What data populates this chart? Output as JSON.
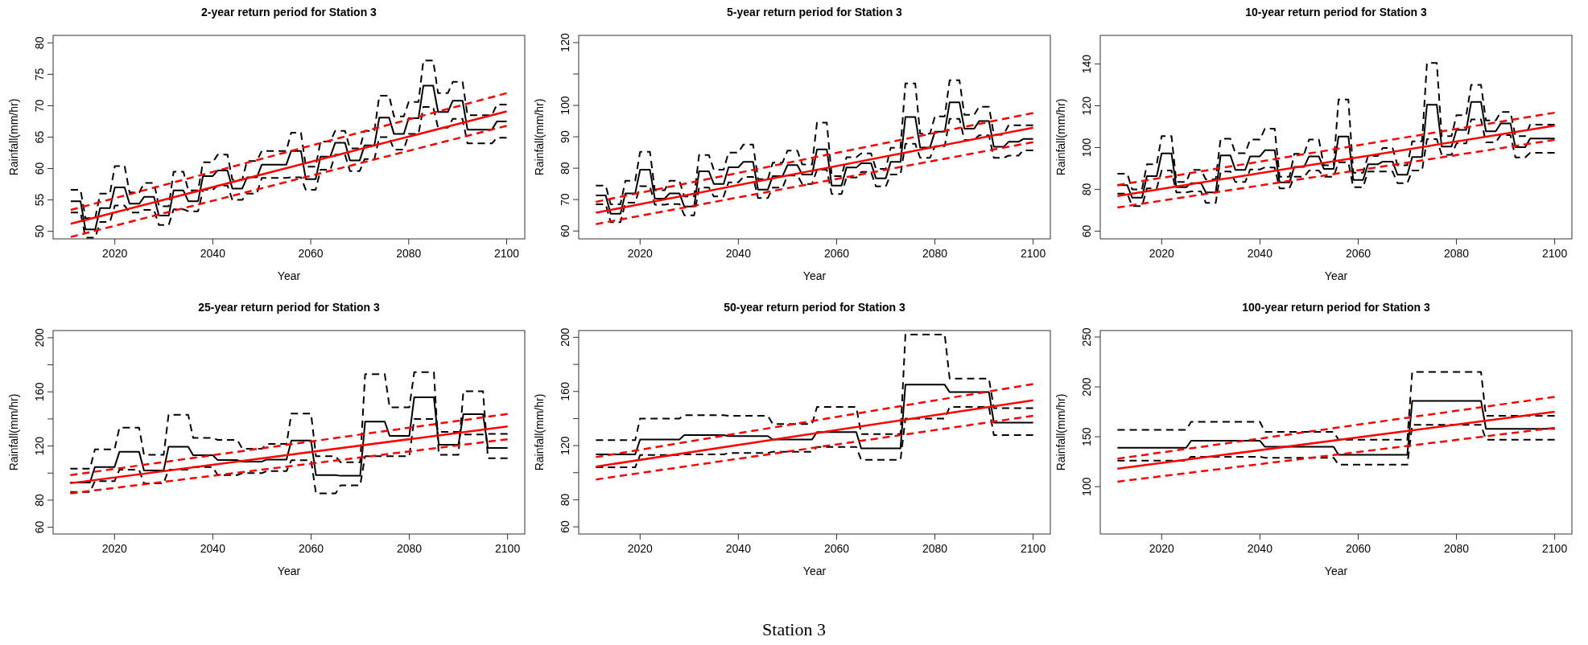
{
  "chart_data": [
    {
      "type": "line",
      "title": "2-year return period for Station 3",
      "xlabel": "Year",
      "ylabel": "Rainfall(mm/hr)",
      "xlim": [
        2007.4,
        2103.7
      ],
      "ylim": [
        48.8,
        81.2
      ],
      "xticks": [
        2020,
        2040,
        2060,
        2080,
        2100
      ],
      "yticks": [
        50,
        55,
        60,
        65,
        70,
        75,
        80
      ],
      "series": [
        {
          "color": "#000000",
          "line_style": "solid",
          "x": [
            2011,
            2013,
            2014,
            2016,
            2017,
            2019,
            2020,
            2022,
            2023,
            2025,
            2026,
            2028,
            2029,
            2031,
            2032,
            2034,
            2035,
            2037,
            2038,
            2040,
            2041,
            2043,
            2044,
            2046,
            2047,
            2049,
            2050,
            2055,
            2056,
            2058,
            2059,
            2061,
            2062,
            2064,
            2065,
            2067,
            2068,
            2070,
            2071,
            2073,
            2074,
            2076,
            2077,
            2079,
            2080,
            2082,
            2083,
            2085,
            2086,
            2088,
            2089,
            2091,
            2092,
            2097,
            2098,
            2100
          ],
          "values": [
            54.8,
            54.8,
            50.3,
            50.3,
            53.7,
            53.7,
            57,
            57,
            54.4,
            54.4,
            55.5,
            55.5,
            52.5,
            52.5,
            56.5,
            56.5,
            54.8,
            54.8,
            58.8,
            58.8,
            59.7,
            59.7,
            56.8,
            56.8,
            58.6,
            58.6,
            60.6,
            60.6,
            62.8,
            62.8,
            58.3,
            58.3,
            61.9,
            61.9,
            64.1,
            64.1,
            61.3,
            61.3,
            63.7,
            63.7,
            68.1,
            68.1,
            65.5,
            65.5,
            68,
            68,
            73.2,
            73.2,
            69,
            69,
            70.8,
            70.8,
            66.2,
            66.2,
            67.5,
            67.5
          ]
        },
        {
          "color": "#000000",
          "line_style": "dashed",
          "x": [
            2011,
            2013,
            2014,
            2016,
            2017,
            2019,
            2020,
            2022,
            2023,
            2025,
            2026,
            2028,
            2029,
            2031,
            2032,
            2034,
            2035,
            2037,
            2038,
            2040,
            2041,
            2043,
            2044,
            2046,
            2047,
            2049,
            2050,
            2055,
            2056,
            2058,
            2059,
            2061,
            2062,
            2064,
            2065,
            2067,
            2068,
            2070,
            2071,
            2073,
            2074,
            2076,
            2077,
            2079,
            2080,
            2082,
            2083,
            2085,
            2086,
            2088,
            2089,
            2091,
            2092,
            2097,
            2098,
            2100
          ],
          "values": [
            56.6,
            56.6,
            52.1,
            52.1,
            56,
            56,
            60.4,
            60.4,
            56.2,
            56.2,
            57.7,
            57.7,
            54,
            54,
            59.5,
            59.5,
            56.5,
            56.5,
            61,
            61,
            62.2,
            62.2,
            58.2,
            58.2,
            61.2,
            61.2,
            62.8,
            62.8,
            65.7,
            65.7,
            60.3,
            60.3,
            64.3,
            64.3,
            66,
            66,
            63.2,
            63.2,
            66,
            66,
            71.6,
            71.6,
            68.3,
            68.3,
            70.6,
            70.6,
            77.2,
            77.2,
            72,
            72,
            73.8,
            73.8,
            68.5,
            68.5,
            70.2,
            70.2
          ]
        },
        {
          "color": "#000000",
          "line_style": "dashed",
          "x": [
            2011,
            2013,
            2014,
            2016,
            2017,
            2019,
            2020,
            2022,
            2023,
            2025,
            2026,
            2028,
            2029,
            2031,
            2032,
            2034,
            2035,
            2037,
            2038,
            2040,
            2041,
            2043,
            2044,
            2046,
            2047,
            2049,
            2050,
            2055,
            2056,
            2058,
            2059,
            2061,
            2062,
            2064,
            2065,
            2067,
            2068,
            2070,
            2071,
            2073,
            2074,
            2076,
            2077,
            2079,
            2080,
            2082,
            2083,
            2085,
            2086,
            2088,
            2089,
            2091,
            2092,
            2097,
            2098,
            2100
          ],
          "values": [
            53,
            53,
            49,
            49,
            51.5,
            51.5,
            54.1,
            54.1,
            53,
            53,
            53.4,
            53.4,
            51,
            51,
            53.5,
            53.5,
            53.2,
            53.2,
            56.6,
            56.6,
            57.3,
            57.3,
            55,
            55,
            56,
            56,
            58.5,
            58.5,
            58.6,
            58.6,
            56.6,
            56.6,
            59.8,
            59.8,
            62.2,
            62.2,
            59.6,
            59.6,
            61.5,
            61.5,
            65,
            65,
            63,
            63,
            65.5,
            65.5,
            69.8,
            69.8,
            66.5,
            66.5,
            67.9,
            67.9,
            64,
            64,
            64.9,
            64.9
          ]
        },
        {
          "color": "#ff0000",
          "line_style": "solid",
          "x": [
            2011,
            2100
          ],
          "values": [
            51.2,
            69.1
          ]
        },
        {
          "color": "#ff0000",
          "line_style": "dashed",
          "x": [
            2011,
            2100
          ],
          "values": [
            53.4,
            72
          ]
        },
        {
          "color": "#ff0000",
          "line_style": "dashed",
          "x": [
            2011,
            2100
          ],
          "values": [
            49.1,
            66.8
          ]
        }
      ]
    },
    {
      "type": "line",
      "title": "5-year return period for Station 3",
      "xlabel": "Year",
      "ylabel": "Rainfall(mm/hr)",
      "xlim": [
        2007.5,
        2103.5
      ],
      "ylim": [
        57.5,
        122.3
      ],
      "xticks": [
        2020,
        2040,
        2060,
        2080,
        2100
      ],
      "yticks": [
        60,
        70,
        80,
        90,
        100,
        {
          "value": 110,
          "label": null
        },
        120
      ],
      "series": [
        {
          "color": "#000000",
          "line_style": "solid",
          "x": [
            2011,
            2013,
            2014,
            2016,
            2017,
            2019,
            2020,
            2022,
            2023,
            2025,
            2026,
            2028,
            2029,
            2031,
            2032,
            2034,
            2035,
            2037,
            2038,
            2040,
            2041,
            2043,
            2044,
            2046,
            2047,
            2049,
            2050,
            2052,
            2053,
            2055,
            2056,
            2058,
            2059,
            2061,
            2062,
            2064,
            2065,
            2067,
            2068,
            2070,
            2071,
            2073,
            2074,
            2076,
            2077,
            2079,
            2080,
            2082,
            2083,
            2085,
            2086,
            2088,
            2089,
            2091,
            2092,
            2094,
            2095,
            2097,
            2098,
            2100
          ],
          "values": [
            71.3,
            71.3,
            65.5,
            65.5,
            72,
            72,
            79.5,
            79.5,
            70.3,
            70.3,
            72,
            72,
            67.8,
            67.8,
            79,
            79,
            75,
            75,
            80.3,
            80.3,
            82,
            82,
            73.2,
            73.2,
            77.5,
            77.5,
            81,
            81,
            78,
            78,
            86,
            86,
            74.5,
            74.5,
            80.2,
            80.2,
            81.6,
            81.6,
            76.8,
            76.8,
            82,
            82,
            96.3,
            96.3,
            86.6,
            86.6,
            91.6,
            91.6,
            101,
            101,
            92.6,
            92.6,
            95,
            95,
            86.8,
            86.8,
            88.4,
            88.4,
            89.3,
            89.3
          ]
        },
        {
          "color": "#000000",
          "line_style": "dashed",
          "x": [
            2011,
            2013,
            2014,
            2016,
            2017,
            2019,
            2020,
            2022,
            2023,
            2025,
            2026,
            2028,
            2029,
            2031,
            2032,
            2034,
            2035,
            2037,
            2038,
            2040,
            2041,
            2043,
            2044,
            2046,
            2047,
            2049,
            2050,
            2052,
            2053,
            2055,
            2056,
            2058,
            2059,
            2061,
            2062,
            2064,
            2065,
            2067,
            2068,
            2070,
            2071,
            2073,
            2074,
            2076,
            2077,
            2079,
            2080,
            2082,
            2083,
            2085,
            2086,
            2088,
            2089,
            2091,
            2092,
            2094,
            2095,
            2097,
            2098,
            2100
          ],
          "values": [
            74.5,
            74.5,
            68.5,
            68.5,
            76,
            76,
            85.2,
            85.2,
            73,
            73,
            76,
            76,
            71,
            71,
            84.2,
            84.2,
            79.5,
            79.5,
            85,
            85,
            87.5,
            87.5,
            76.5,
            76.5,
            81.8,
            81.8,
            85.6,
            85.6,
            81.2,
            81.2,
            94.5,
            94.5,
            77.5,
            77.5,
            83.5,
            83.5,
            84.7,
            84.7,
            79.8,
            79.8,
            86.5,
            86.5,
            107,
            107,
            91,
            91,
            96.5,
            96.5,
            108,
            108,
            97,
            97,
            99.6,
            99.6,
            90.7,
            90.7,
            93.7,
            93.7,
            93.7,
            93.7
          ]
        },
        {
          "color": "#000000",
          "line_style": "dashed",
          "x": [
            2011,
            2013,
            2014,
            2016,
            2017,
            2019,
            2020,
            2022,
            2023,
            2025,
            2026,
            2028,
            2029,
            2031,
            2032,
            2034,
            2035,
            2037,
            2038,
            2040,
            2041,
            2043,
            2044,
            2046,
            2047,
            2049,
            2050,
            2052,
            2053,
            2055,
            2056,
            2058,
            2059,
            2061,
            2062,
            2064,
            2065,
            2067,
            2068,
            2070,
            2071,
            2073,
            2074,
            2076,
            2077,
            2079,
            2080,
            2082,
            2083,
            2085,
            2086,
            2088,
            2089,
            2091,
            2092,
            2094,
            2095,
            2097,
            2098,
            2100
          ],
          "values": [
            68.5,
            68.5,
            62.8,
            62.8,
            69,
            69,
            74.3,
            74.3,
            68.4,
            68.4,
            68.6,
            68.6,
            65,
            65,
            73.8,
            73.8,
            71,
            71,
            75.5,
            75.5,
            77.2,
            77.2,
            70.5,
            70.5,
            73.8,
            73.8,
            77.7,
            77.7,
            75,
            75,
            79.5,
            79.5,
            71.8,
            71.8,
            77,
            77,
            78.8,
            78.8,
            74.2,
            74.2,
            78,
            78,
            87.8,
            87.8,
            83.3,
            83.3,
            87,
            87,
            95.7,
            95.7,
            89,
            89,
            90.5,
            90.5,
            83.3,
            83.3,
            84,
            84,
            85.7,
            85.7
          ]
        },
        {
          "color": "#ff0000",
          "line_style": "solid",
          "x": [
            2011,
            2100
          ],
          "values": [
            65.8,
            92.9
          ]
        },
        {
          "color": "#ff0000",
          "line_style": "dashed",
          "x": [
            2011,
            2100
          ],
          "values": [
            69.3,
            97.6
          ]
        },
        {
          "color": "#ff0000",
          "line_style": "dashed",
          "x": [
            2011,
            2100
          ],
          "values": [
            62.2,
            88.3
          ]
        }
      ]
    },
    {
      "type": "line",
      "title": "10-year return period for Station 3",
      "xlabel": "Year",
      "ylabel": "Rainfall(mm/hr)",
      "xlim": [
        2007.5,
        2103.5
      ],
      "ylim": [
        56.3,
        153.7
      ],
      "xticks": [
        2020,
        2040,
        2060,
        2080,
        2100
      ],
      "yticks": [
        60,
        80,
        100,
        120,
        140
      ],
      "series": [
        {
          "color": "#000000",
          "line_style": "solid",
          "x": [
            2011,
            2013,
            2014,
            2016,
            2017,
            2019,
            2020,
            2022,
            2023,
            2025,
            2026,
            2028,
            2029,
            2031,
            2032,
            2034,
            2035,
            2037,
            2038,
            2040,
            2041,
            2043,
            2044,
            2046,
            2047,
            2049,
            2050,
            2052,
            2053,
            2055,
            2056,
            2058,
            2059,
            2061,
            2062,
            2064,
            2065,
            2067,
            2068,
            2070,
            2071,
            2073,
            2074,
            2076,
            2077,
            2079,
            2080,
            2082,
            2083,
            2085,
            2086,
            2088,
            2089,
            2091,
            2092,
            2094,
            2095,
            2100
          ],
          "values": [
            82,
            82,
            76,
            76,
            86.3,
            86.3,
            97.2,
            97.2,
            81,
            81,
            83,
            83,
            78.5,
            78.5,
            96.2,
            96.2,
            89.3,
            89.3,
            95.8,
            95.8,
            98.7,
            98.7,
            83.3,
            83.3,
            90.8,
            90.8,
            95.8,
            95.8,
            89.8,
            89.8,
            105.3,
            105.3,
            84.5,
            84.5,
            92,
            92,
            93.3,
            93.3,
            87,
            87,
            95.5,
            95.5,
            120.5,
            120.5,
            100.5,
            100.5,
            108.5,
            108.5,
            121.8,
            121.8,
            107.8,
            107.8,
            111.5,
            111.5,
            100.2,
            100.2,
            104.3,
            104.3
          ]
        },
        {
          "color": "#000000",
          "line_style": "dashed",
          "x": [
            2011,
            2013,
            2014,
            2016,
            2017,
            2019,
            2020,
            2022,
            2023,
            2025,
            2026,
            2028,
            2029,
            2031,
            2032,
            2034,
            2035,
            2037,
            2038,
            2040,
            2041,
            2043,
            2044,
            2046,
            2047,
            2049,
            2050,
            2052,
            2053,
            2055,
            2056,
            2058,
            2059,
            2061,
            2062,
            2064,
            2065,
            2067,
            2068,
            2070,
            2071,
            2073,
            2074,
            2076,
            2077,
            2079,
            2080,
            2082,
            2083,
            2085,
            2086,
            2088,
            2089,
            2091,
            2092,
            2094,
            2095,
            2100
          ],
          "values": [
            87.5,
            87.5,
            80,
            80,
            92,
            92,
            105.5,
            105.5,
            83.5,
            83.5,
            89.3,
            89.3,
            84.8,
            84.8,
            104.2,
            104.2,
            97.3,
            97.3,
            103.8,
            103.8,
            109,
            109,
            86,
            86,
            97,
            97,
            103.8,
            103.8,
            91.5,
            91.5,
            123,
            123,
            88,
            88,
            96,
            96,
            99.8,
            99.8,
            91.5,
            91.5,
            103,
            103,
            140.5,
            140.5,
            105.5,
            105.5,
            115.5,
            115.5,
            130,
            130,
            113,
            113,
            117,
            117,
            105.5,
            105.5,
            111,
            111
          ]
        },
        {
          "color": "#000000",
          "line_style": "dashed",
          "x": [
            2011,
            2013,
            2014,
            2016,
            2017,
            2019,
            2020,
            2022,
            2023,
            2025,
            2026,
            2028,
            2029,
            2031,
            2032,
            2034,
            2035,
            2037,
            2038,
            2040,
            2041,
            2043,
            2044,
            2046,
            2047,
            2049,
            2050,
            2052,
            2053,
            2055,
            2056,
            2058,
            2059,
            2061,
            2062,
            2064,
            2065,
            2067,
            2068,
            2070,
            2071,
            2073,
            2074,
            2076,
            2077,
            2079,
            2080,
            2082,
            2083,
            2085,
            2086,
            2088,
            2089,
            2091,
            2092,
            2094,
            2095,
            2100
          ],
          "values": [
            78,
            78,
            72,
            72,
            80.5,
            80.5,
            89,
            89,
            78.5,
            78.5,
            79,
            79,
            73.5,
            73.5,
            88.5,
            88.5,
            83.5,
            83.5,
            89.5,
            89.5,
            90.5,
            90.5,
            80.5,
            80.5,
            86,
            86,
            89,
            89,
            86,
            86,
            93,
            93,
            81,
            81,
            88.5,
            88.5,
            88.5,
            88.5,
            83,
            83,
            89,
            89,
            104,
            104,
            96.5,
            96.5,
            102,
            102,
            113.5,
            113.5,
            102.5,
            102.5,
            106,
            106,
            95.3,
            95.3,
            97.5,
            97.5
          ]
        },
        {
          "color": "#ff0000",
          "line_style": "solid",
          "x": [
            2011,
            2100
          ],
          "values": [
            76.8,
            110.5
          ]
        },
        {
          "color": "#ff0000",
          "line_style": "dashed",
          "x": [
            2011,
            2100
          ],
          "values": [
            82,
            116.7
          ]
        },
        {
          "color": "#ff0000",
          "line_style": "dashed",
          "x": [
            2011,
            2100
          ],
          "values": [
            71.3,
            103.7
          ]
        }
      ]
    },
    {
      "type": "line",
      "title": "25-year return period for Station 3",
      "xlabel": "Year",
      "ylabel": "Rainfall(mm/hr)",
      "xlim": [
        2007.5,
        2103.5
      ],
      "ylim": [
        55,
        205.3
      ],
      "xticks": [
        2020,
        2040,
        2060,
        2080,
        2100
      ],
      "yticks": [
        60,
        80,
        {
          "value": 100,
          "label": null
        },
        120,
        {
          "value": 140,
          "label": null
        },
        160,
        {
          "value": 180,
          "label": null
        },
        200
      ],
      "series": [
        {
          "color": "#000000",
          "line_style": "solid",
          "x": [
            2011,
            2015,
            2016,
            2020,
            2021,
            2025,
            2026,
            2030,
            2031,
            2035,
            2036,
            2040,
            2041,
            2045,
            2046,
            2050,
            2051,
            2055,
            2056,
            2060,
            2061,
            2065,
            2066,
            2070,
            2071,
            2075,
            2076,
            2080,
            2081,
            2085,
            2086,
            2090,
            2091,
            2095,
            2096,
            2100
          ],
          "values": [
            93,
            93,
            104.5,
            104.5,
            115.7,
            115.7,
            102,
            102,
            119.5,
            119.5,
            113.2,
            113.2,
            109.6,
            109.6,
            108.5,
            108.5,
            110,
            110,
            124,
            124,
            98.5,
            98.5,
            98,
            98,
            138,
            138,
            127.5,
            127.5,
            156,
            156,
            121,
            121,
            143.5,
            143.5,
            118.5,
            118.5
          ]
        },
        {
          "color": "#000000",
          "line_style": "dashed",
          "x": [
            2011,
            2015,
            2016,
            2020,
            2021,
            2025,
            2026,
            2030,
            2031,
            2035,
            2036,
            2040,
            2041,
            2045,
            2046,
            2050,
            2051,
            2055,
            2056,
            2060,
            2061,
            2065,
            2066,
            2070,
            2071,
            2075,
            2076,
            2080,
            2081,
            2085,
            2086,
            2090,
            2091,
            2095,
            2096,
            2100
          ],
          "values": [
            103.3,
            103.3,
            117.5,
            117.5,
            133.5,
            133.5,
            113.5,
            113.5,
            143,
            143,
            126,
            126,
            124.5,
            124.5,
            118,
            118,
            121.5,
            121.5,
            144,
            144,
            112.5,
            112.5,
            108,
            108,
            173,
            173,
            148.5,
            148.5,
            174.5,
            174.5,
            113.5,
            113.5,
            160.5,
            160.5,
            111,
            111
          ]
        },
        {
          "color": "#000000",
          "line_style": "dashed",
          "x": [
            2011,
            2015,
            2016,
            2020,
            2021,
            2025,
            2026,
            2030,
            2031,
            2035,
            2036,
            2040,
            2041,
            2045,
            2046,
            2050,
            2051,
            2055,
            2056,
            2060,
            2061,
            2065,
            2066,
            2070,
            2071,
            2075,
            2076,
            2080,
            2081,
            2085,
            2086,
            2090,
            2091,
            2095,
            2096,
            2100
          ],
          "values": [
            86,
            86,
            94,
            94,
            102.5,
            102.5,
            92.5,
            92.5,
            102.5,
            102.5,
            104.5,
            104.5,
            98.5,
            98.5,
            100,
            100,
            101.5,
            101.5,
            109.5,
            109.5,
            85,
            85,
            91,
            91,
            112.5,
            112.5,
            112.5,
            112.5,
            140,
            140,
            130.5,
            130.5,
            128.5,
            128.5,
            129,
            129
          ]
        },
        {
          "color": "#ff0000",
          "line_style": "solid",
          "x": [
            2011,
            2100
          ],
          "values": [
            92.5,
            134.5
          ]
        },
        {
          "color": "#ff0000",
          "line_style": "dashed",
          "x": [
            2011,
            2100
          ],
          "values": [
            98.5,
            143.7
          ]
        },
        {
          "color": "#ff0000",
          "line_style": "dashed",
          "x": [
            2011,
            2100
          ],
          "values": [
            85,
            125
          ]
        }
      ]
    },
    {
      "type": "line",
      "title": "50-year return period for Station 3",
      "xlabel": "Year",
      "ylabel": "Rainfall(mm/hr)",
      "xlim": [
        2007.5,
        2103.5
      ],
      "ylim": [
        54.7,
        205
      ],
      "xticks": [
        2020,
        2040,
        2060,
        2080,
        2100
      ],
      "yticks": [
        60,
        80,
        {
          "value": 100,
          "label": null
        },
        120,
        {
          "value": 140,
          "label": null
        },
        160,
        {
          "value": 180,
          "label": null
        },
        200
      ],
      "series": [
        {
          "color": "#000000",
          "line_style": "solid",
          "x": [
            2011,
            2019,
            2020,
            2028,
            2029,
            2037,
            2038,
            2046,
            2047,
            2055,
            2056,
            2064,
            2065,
            2073,
            2074,
            2082,
            2083,
            2091,
            2092,
            2100
          ],
          "values": [
            113.5,
            113.5,
            124.5,
            124.5,
            127.8,
            127.8,
            127,
            127,
            124.5,
            124.5,
            130,
            130,
            118,
            118,
            165,
            165,
            159.5,
            159.5,
            137,
            137
          ]
        },
        {
          "color": "#000000",
          "line_style": "dashed",
          "x": [
            2011,
            2019,
            2020,
            2028,
            2029,
            2037,
            2038,
            2046,
            2047,
            2055,
            2056,
            2064,
            2065,
            2073,
            2074,
            2082,
            2083,
            2091,
            2092,
            2100
          ],
          "values": [
            124,
            124,
            140,
            140,
            142.5,
            142.5,
            142,
            142,
            136,
            136,
            148.5,
            148.5,
            128.5,
            128.5,
            202,
            202,
            169.5,
            169.5,
            147.7,
            147.7
          ]
        },
        {
          "color": "#000000",
          "line_style": "dashed",
          "x": [
            2011,
            2019,
            2020,
            2028,
            2029,
            2037,
            2038,
            2046,
            2047,
            2055,
            2056,
            2064,
            2065,
            2073,
            2074,
            2082,
            2083,
            2091,
            2092,
            2100
          ],
          "values": [
            104,
            104,
            113,
            113,
            113.5,
            113.5,
            114.5,
            114.5,
            115.5,
            115.5,
            119,
            119,
            109.5,
            109.5,
            140,
            140,
            148.5,
            148.5,
            127.7,
            127.7
          ]
        },
        {
          "color": "#ff0000",
          "line_style": "solid",
          "x": [
            2011,
            2100
          ],
          "values": [
            104.5,
            153.5
          ]
        },
        {
          "color": "#ff0000",
          "line_style": "dashed",
          "x": [
            2011,
            2100
          ],
          "values": [
            111.5,
            165.5
          ]
        },
        {
          "color": "#ff0000",
          "line_style": "dashed",
          "x": [
            2011,
            2100
          ],
          "values": [
            95,
            142
          ]
        }
      ]
    },
    {
      "type": "line",
      "title": "100-year return period for Station 3",
      "xlabel": "Year",
      "ylabel": "Rainfall(mm/hr)",
      "xlim": [
        2007.5,
        2103.5
      ],
      "ylim": [
        52.5,
        256.5
      ],
      "xticks": [
        2020,
        2040,
        2060,
        2080,
        2100
      ],
      "yticks": [
        100,
        150,
        200,
        250
      ],
      "series": [
        {
          "color": "#000000",
          "line_style": "solid",
          "x": [
            2011,
            2025,
            2026,
            2040,
            2041,
            2055,
            2056,
            2070,
            2071,
            2085,
            2086,
            2100
          ],
          "values": [
            139,
            139,
            146,
            146,
            140,
            140,
            132,
            132,
            186,
            186,
            158,
            158
          ]
        },
        {
          "color": "#000000",
          "line_style": "dashed",
          "x": [
            2011,
            2025,
            2026,
            2040,
            2041,
            2055,
            2056,
            2070,
            2071,
            2085,
            2086,
            2100
          ],
          "values": [
            157,
            157,
            165,
            165,
            155,
            155,
            147,
            147,
            215,
            215,
            171,
            171
          ]
        },
        {
          "color": "#000000",
          "line_style": "dashed",
          "x": [
            2011,
            2025,
            2026,
            2040,
            2041,
            2055,
            2056,
            2070,
            2071,
            2085,
            2086,
            2100
          ],
          "values": [
            126,
            126,
            130,
            130,
            129,
            129,
            122,
            122,
            162,
            162,
            147,
            147
          ]
        },
        {
          "color": "#ff0000",
          "line_style": "solid",
          "x": [
            2011,
            2100
          ],
          "values": [
            118,
            175
          ]
        },
        {
          "color": "#ff0000",
          "line_style": "dashed",
          "x": [
            2011,
            2100
          ],
          "values": [
            128,
            190
          ]
        },
        {
          "color": "#ff0000",
          "line_style": "dashed",
          "x": [
            2011,
            2100
          ],
          "values": [
            105,
            159
          ]
        }
      ]
    },
    {
      "type": "other",
      "annotations": [
        "Station 3"
      ]
    }
  ]
}
